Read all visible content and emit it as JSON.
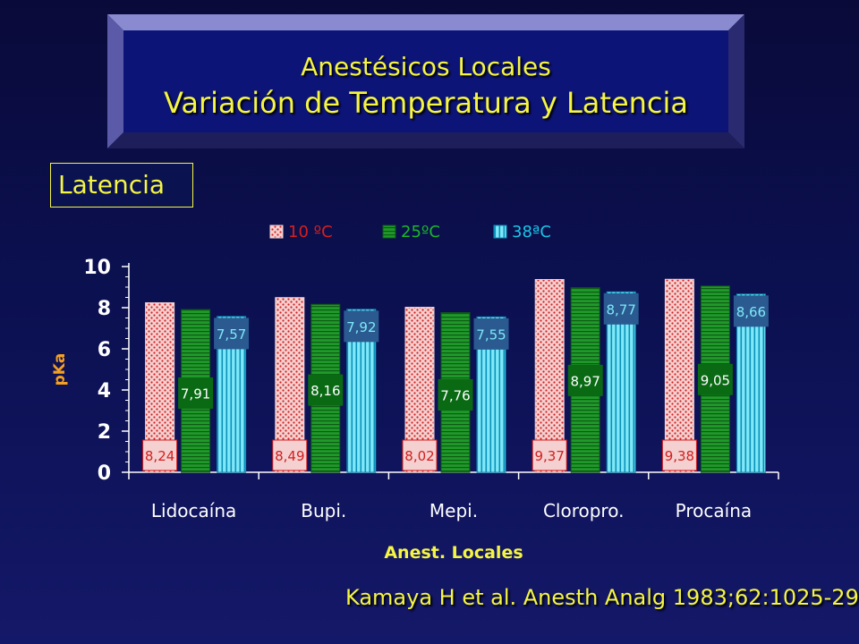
{
  "header": {
    "title_line1": "Anestésicos Locales",
    "title_line2": "Variación de Temperatura y Latencia"
  },
  "section_label": "Latencia",
  "citation": "Kamaya H  et al.  Anesth Analg 1983;62:1025-29",
  "colors": {
    "background": "#0b1050",
    "title_text": "#f5f544",
    "series_10": "#d42020",
    "series_25": "#1f9a2a",
    "series_38": "#19c6e6",
    "axis_text": "#ffffff"
  },
  "chart_data": {
    "type": "bar",
    "xlabel": "Anest. Locales",
    "ylabel": "pKa",
    "ylim": [
      0,
      10
    ],
    "yticks": [
      "0",
      "2",
      "4",
      "6",
      "8",
      "10"
    ],
    "categories": [
      "Lidocaína",
      "Bupi.",
      "Mepi.",
      "Cloropro.",
      "Procaína"
    ],
    "legend_position": "top",
    "grid": false,
    "series": [
      {
        "name": "10 ºC",
        "values": [
          8.24,
          8.49,
          8.02,
          9.37,
          9.38
        ],
        "labels": [
          "8,24",
          "8,49",
          "8,02",
          "9,37",
          "9,38"
        ]
      },
      {
        "name": "25ºC",
        "values": [
          7.91,
          8.16,
          7.76,
          8.97,
          9.05
        ],
        "labels": [
          "7,91",
          "8,16",
          "7,76",
          "8,97",
          "9,05"
        ]
      },
      {
        "name": "38ªC",
        "values": [
          7.57,
          7.92,
          7.55,
          8.77,
          8.66
        ],
        "labels": [
          "7,57",
          "7,92",
          "7,55",
          "8,77",
          "8,66"
        ]
      }
    ]
  }
}
